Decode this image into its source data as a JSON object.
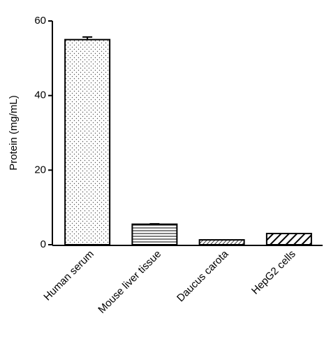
{
  "chart_data": {
    "type": "bar",
    "y_label": "Protein (mg/mL)",
    "categories": [
      "Human serum",
      "Mouse liver tissue",
      "Daucus carota",
      "HepG2 cells"
    ],
    "values": [
      55,
      5.5,
      1.3,
      3
    ],
    "errors": [
      0.7,
      0.1,
      null,
      null
    ],
    "color": "#000000",
    "ylim": [
      0,
      60
    ],
    "yticks": [
      0,
      20,
      40,
      60
    ],
    "grid": false
  }
}
